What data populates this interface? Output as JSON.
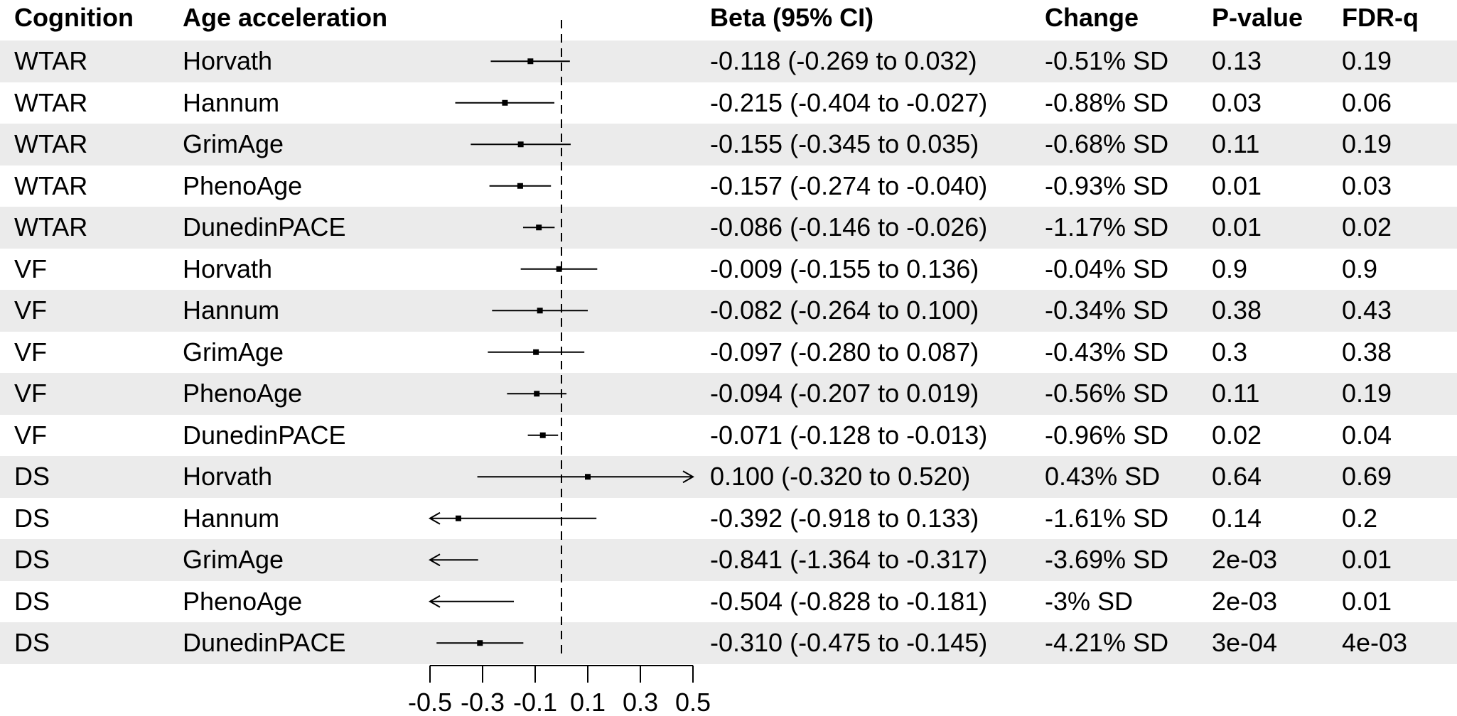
{
  "headers": {
    "cognition": "Cognition",
    "age_acceleration": "Age acceleration",
    "beta": "Beta (95% CI)",
    "change": "Change",
    "pvalue": "P-value",
    "fdr": "FDR-q"
  },
  "rows": [
    {
      "cognition": "WTAR",
      "age": "Horvath",
      "beta_ci": "-0.118 (-0.269 to 0.032)",
      "change": "-0.51% SD",
      "p": "0.13",
      "fdr": "0.19"
    },
    {
      "cognition": "WTAR",
      "age": "Hannum",
      "beta_ci": "-0.215 (-0.404 to -0.027)",
      "change": "-0.88% SD",
      "p": "0.03",
      "fdr": "0.06"
    },
    {
      "cognition": "WTAR",
      "age": "GrimAge",
      "beta_ci": "-0.155 (-0.345 to 0.035)",
      "change": "-0.68% SD",
      "p": "0.11",
      "fdr": "0.19"
    },
    {
      "cognition": "WTAR",
      "age": "PhenoAge",
      "beta_ci": "-0.157 (-0.274 to -0.040)",
      "change": "-0.93% SD",
      "p": "0.01",
      "fdr": "0.03"
    },
    {
      "cognition": "WTAR",
      "age": "DunedinPACE",
      "beta_ci": "-0.086 (-0.146 to -0.026)",
      "change": "-1.17% SD",
      "p": "0.01",
      "fdr": "0.02"
    },
    {
      "cognition": "VF",
      "age": "Horvath",
      "beta_ci": "-0.009 (-0.155 to 0.136)",
      "change": "-0.04% SD",
      "p": "0.9",
      "fdr": "0.9"
    },
    {
      "cognition": "VF",
      "age": "Hannum",
      "beta_ci": "-0.082 (-0.264 to 0.100)",
      "change": "-0.34% SD",
      "p": "0.38",
      "fdr": "0.43"
    },
    {
      "cognition": "VF",
      "age": "GrimAge",
      "beta_ci": "-0.097 (-0.280 to 0.087)",
      "change": "-0.43% SD",
      "p": "0.3",
      "fdr": "0.38"
    },
    {
      "cognition": "VF",
      "age": "PhenoAge",
      "beta_ci": "-0.094 (-0.207 to 0.019)",
      "change": "-0.56% SD",
      "p": "0.11",
      "fdr": "0.19"
    },
    {
      "cognition": "VF",
      "age": "DunedinPACE",
      "beta_ci": "-0.071 (-0.128 to -0.013)",
      "change": "-0.96% SD",
      "p": "0.02",
      "fdr": "0.04"
    },
    {
      "cognition": "DS",
      "age": "Horvath",
      "beta_ci": "0.100 (-0.320 to 0.520)",
      "change": "0.43% SD",
      "p": "0.64",
      "fdr": "0.69"
    },
    {
      "cognition": "DS",
      "age": "Hannum",
      "beta_ci": "-0.392 (-0.918 to 0.133)",
      "change": "-1.61% SD",
      "p": "0.14",
      "fdr": "0.2"
    },
    {
      "cognition": "DS",
      "age": "GrimAge",
      "beta_ci": "-0.841 (-1.364 to -0.317)",
      "change": "-3.69% SD",
      "p": "2e-03",
      "fdr": "0.01"
    },
    {
      "cognition": "DS",
      "age": "PhenoAge",
      "beta_ci": "-0.504 (-0.828 to -0.181)",
      "change": "-3% SD",
      "p": "2e-03",
      "fdr": "0.01"
    },
    {
      "cognition": "DS",
      "age": "DunedinPACE",
      "beta_ci": "-0.310 (-0.475 to -0.145)",
      "change": "-4.21% SD",
      "p": "3e-04",
      "fdr": "4e-03"
    }
  ],
  "chart_data": {
    "type": "forest",
    "xlim": [
      -0.5,
      0.5
    ],
    "reference_line": 0,
    "x_ticks": [
      -0.5,
      -0.3,
      -0.1,
      0.1,
      0.3,
      0.5
    ],
    "x_tick_labels": [
      "-0.5",
      "-0.3",
      "-0.1",
      "0.1",
      "0.3",
      "0.5"
    ],
    "estimates": [
      {
        "beta": -0.118,
        "lower": -0.269,
        "upper": 0.032
      },
      {
        "beta": -0.215,
        "lower": -0.404,
        "upper": -0.027
      },
      {
        "beta": -0.155,
        "lower": -0.345,
        "upper": 0.035
      },
      {
        "beta": -0.157,
        "lower": -0.274,
        "upper": -0.04
      },
      {
        "beta": -0.086,
        "lower": -0.146,
        "upper": -0.026
      },
      {
        "beta": -0.009,
        "lower": -0.155,
        "upper": 0.136
      },
      {
        "beta": -0.082,
        "lower": -0.264,
        "upper": 0.1
      },
      {
        "beta": -0.097,
        "lower": -0.28,
        "upper": 0.087
      },
      {
        "beta": -0.094,
        "lower": -0.207,
        "upper": 0.019
      },
      {
        "beta": -0.071,
        "lower": -0.128,
        "upper": -0.013
      },
      {
        "beta": 0.1,
        "lower": -0.32,
        "upper": 0.52
      },
      {
        "beta": -0.392,
        "lower": -0.918,
        "upper": 0.133
      },
      {
        "beta": -0.841,
        "lower": -1.364,
        "upper": -0.317
      },
      {
        "beta": -0.504,
        "lower": -0.828,
        "upper": -0.181
      },
      {
        "beta": -0.31,
        "lower": -0.475,
        "upper": -0.145
      }
    ],
    "row_shading": "alternating",
    "shade_color": "#ebebeb"
  }
}
